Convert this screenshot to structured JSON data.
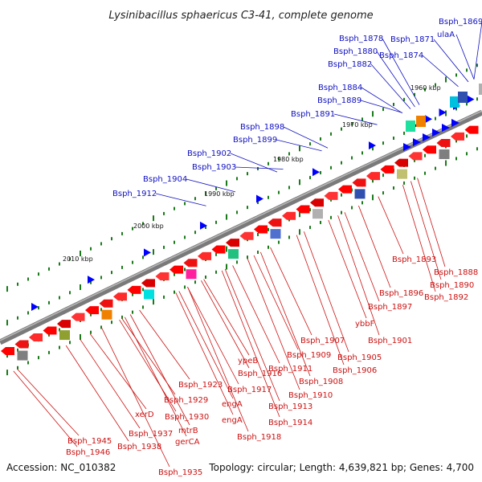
{
  "title": "Lysinibacillus sphaericus C3-41, complete genome",
  "accession": "Accession: NC_010382",
  "summary": "Topology: circular; Length: 4,639,821 bp; Genes: 4,700",
  "colors": {
    "backbone": "#808080",
    "forward_label": "#1010c0",
    "reverse_label": "#cc1111",
    "forward_arrow": "#0000ff",
    "reverse_arrow": "#ff0000",
    "tick": "#1a7a1a"
  },
  "kbp_ticks": [
    "1960 kbp",
    "1970 kbp",
    "1980 kbp",
    "1990 kbp",
    "2000 kbp",
    "2010 kbp"
  ],
  "forward_genes": [
    "Bsph_1869",
    "ulaA",
    "Bsph_1871",
    "Bsph_1874",
    "Bsph_1878",
    "Bsph_1880",
    "Bsph_1882",
    "Bsph_1884",
    "Bsph_1889",
    "Bsph_1891",
    "Bsph_1898",
    "Bsph_1899",
    "Bsph_1902",
    "Bsph_1903",
    "Bsph_1904",
    "Bsph_1912"
  ],
  "reverse_genes": [
    "Bsph_1893",
    "Bsph_1888",
    "Bsph_1890",
    "Bsph_1892",
    "Bsph_1896",
    "Bsph_1897",
    "ybbF",
    "Bsph_1901",
    "Bsph_1905",
    "Bsph_1906",
    "Bsph_1907",
    "Bsph_1909",
    "Bsph_1911",
    "Bsph_1908",
    "ypeB",
    "Bsph_1916",
    "Bsph_1910",
    "Bsph_1917",
    "Bsph_1913",
    "Bsph_1914",
    "Bsph_1918",
    "engA",
    "engA",
    "Bsph_1923",
    "Bsph_1929",
    "Bsph_1930",
    "mtrB",
    "gerCA",
    "xerD",
    "Bsph_1937",
    "Bsph_1938",
    "Bsph_1945",
    "Bsph_1946",
    "Bsph_1935"
  ]
}
